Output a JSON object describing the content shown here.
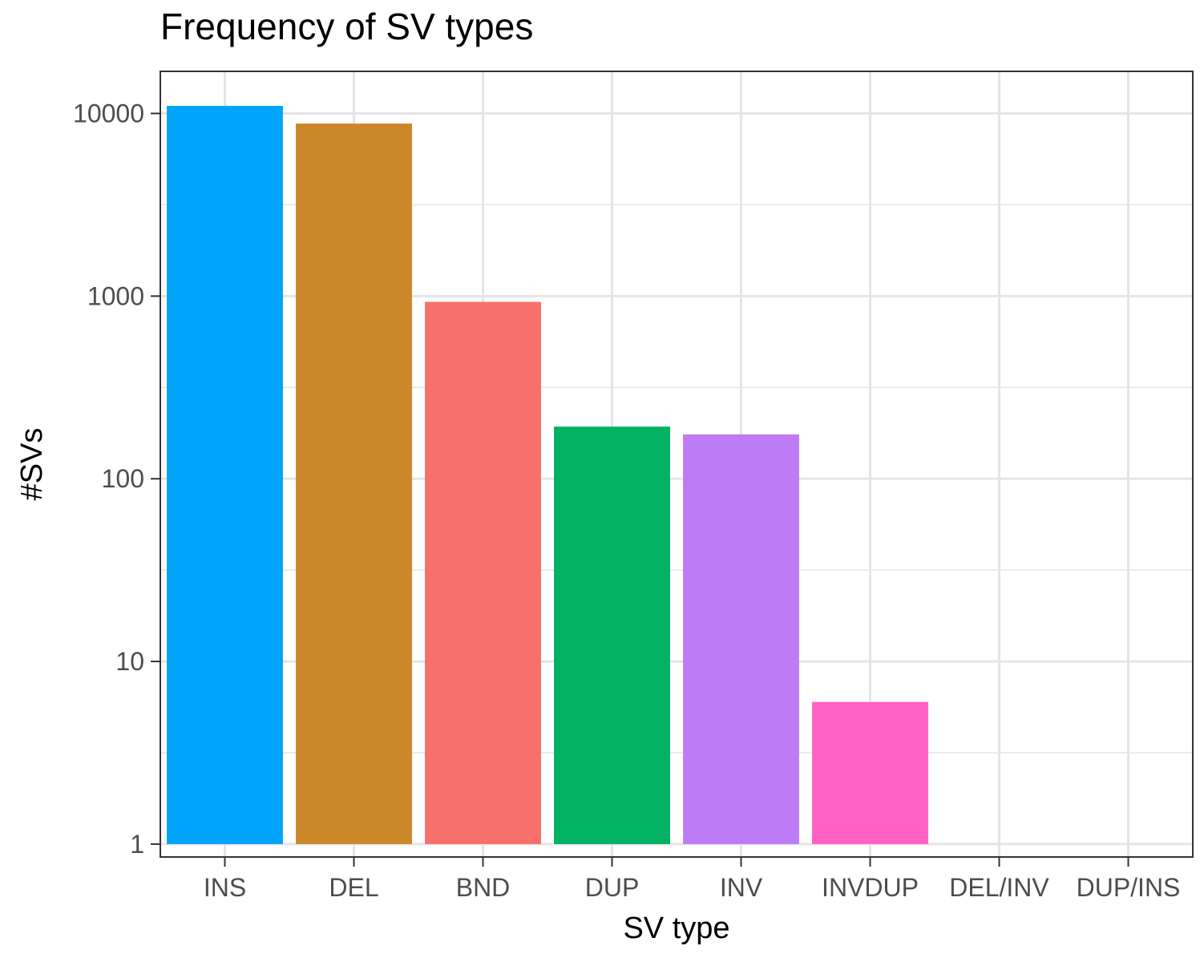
{
  "chart_data": {
    "type": "bar",
    "title": "Frequency of SV types",
    "xlabel": "SV type",
    "ylabel": "#SVs",
    "y_scale": "log10",
    "ylim": [
      0.85,
      17000
    ],
    "y_ticks": [
      1,
      10,
      100,
      1000,
      10000
    ],
    "y_tick_labels": [
      "1",
      "10",
      "100",
      "1000",
      "10000"
    ],
    "grid": true,
    "categories": [
      "INS",
      "DEL",
      "BND",
      "DUP",
      "INV",
      "INVDUP",
      "DEL/INV",
      "DUP/INS"
    ],
    "values": [
      11000,
      8800,
      930,
      193,
      175,
      6,
      1,
      1
    ],
    "colors": [
      "#00A5FB",
      "#CB8828",
      "#F8706B",
      "#00B262",
      "#BD7CF6",
      "#FF62C3",
      "#00BFC4",
      "#7CAE00"
    ]
  }
}
